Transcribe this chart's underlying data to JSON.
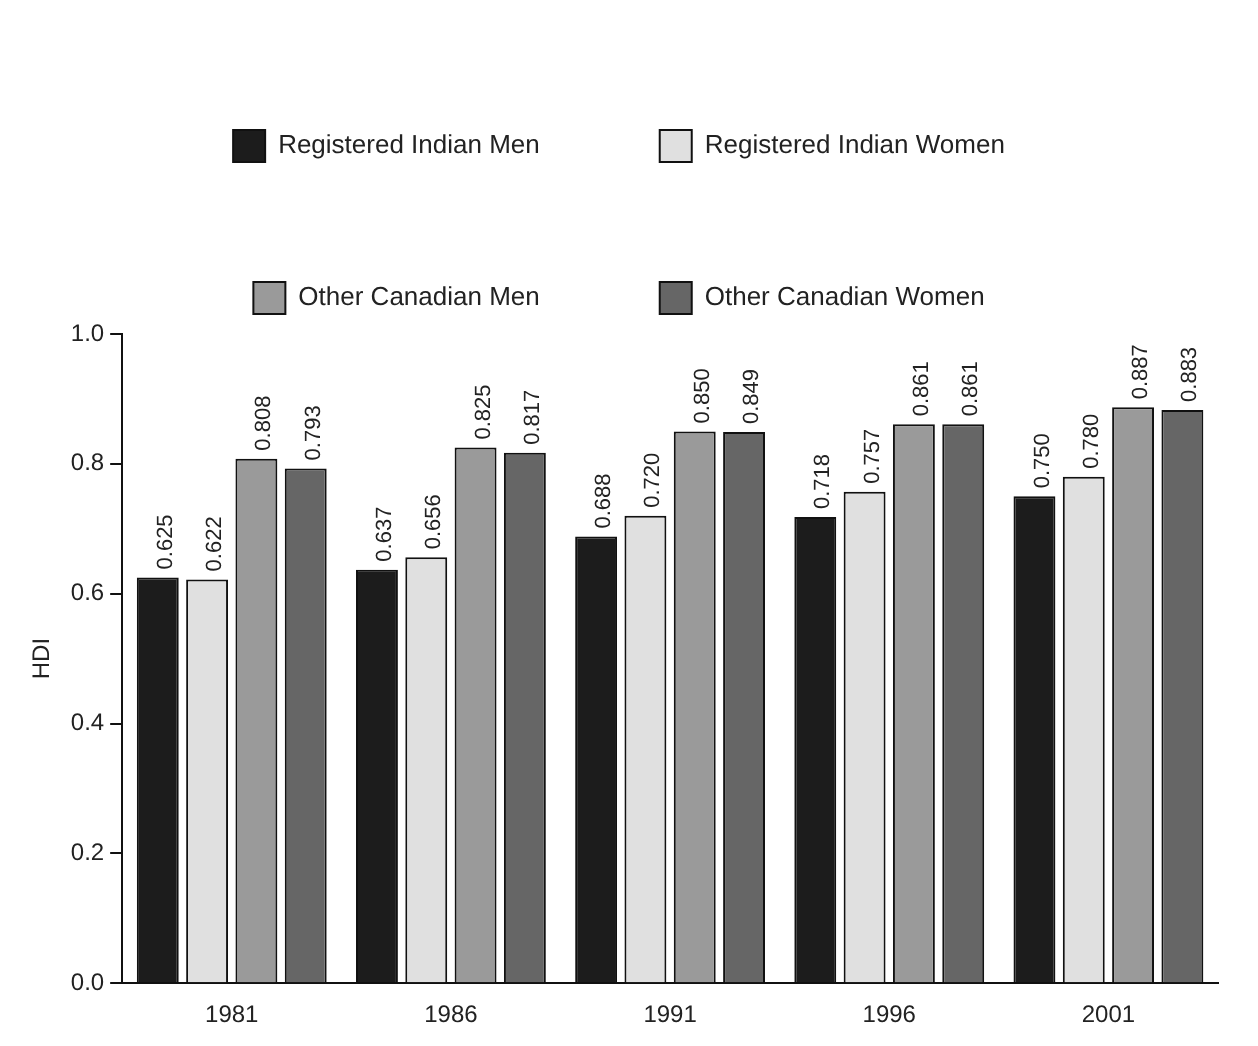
{
  "chart_data": {
    "type": "bar",
    "ylabel": "HDI",
    "categories": [
      "1981",
      "1986",
      "1991",
      "1996",
      "2001"
    ],
    "series": [
      {
        "name": "Registered Indian Men",
        "color": "#1c1c1c",
        "values": [
          0.625,
          0.637,
          0.688,
          0.718,
          0.75
        ],
        "value_labels": [
          "0.625",
          "0.637",
          "0.688",
          "0.718",
          "0.750"
        ]
      },
      {
        "name": "Registered Indian Women",
        "color": "#e0e0e0",
        "values": [
          0.622,
          0.656,
          0.72,
          0.757,
          0.78
        ],
        "value_labels": [
          "0.622",
          "0.656",
          "0.720",
          "0.757",
          "0.780"
        ]
      },
      {
        "name": "Other Canadian Men",
        "color": "#9a9a9a",
        "values": [
          0.808,
          0.825,
          0.85,
          0.861,
          0.887
        ],
        "value_labels": [
          "0.808",
          "0.825",
          "0.850",
          "0.861",
          "0.887"
        ]
      },
      {
        "name": "Other Canadian Women",
        "color": "#666666",
        "values": [
          0.793,
          0.817,
          0.849,
          0.861,
          0.883
        ],
        "value_labels": [
          "0.793",
          "0.817",
          "0.849",
          "0.861",
          "0.883"
        ]
      }
    ],
    "ylim": [
      0,
      1
    ],
    "yticks": [
      {
        "value": 0,
        "label": "0.0"
      },
      {
        "value": 0.2,
        "label": "0.2"
      },
      {
        "value": 0.4,
        "label": "0.4"
      },
      {
        "value": 0.6,
        "label": "0.6"
      },
      {
        "value": 0.8,
        "label": "0.8"
      },
      {
        "value": 1,
        "label": "1.0"
      }
    ],
    "grid": false,
    "legend": "top"
  }
}
